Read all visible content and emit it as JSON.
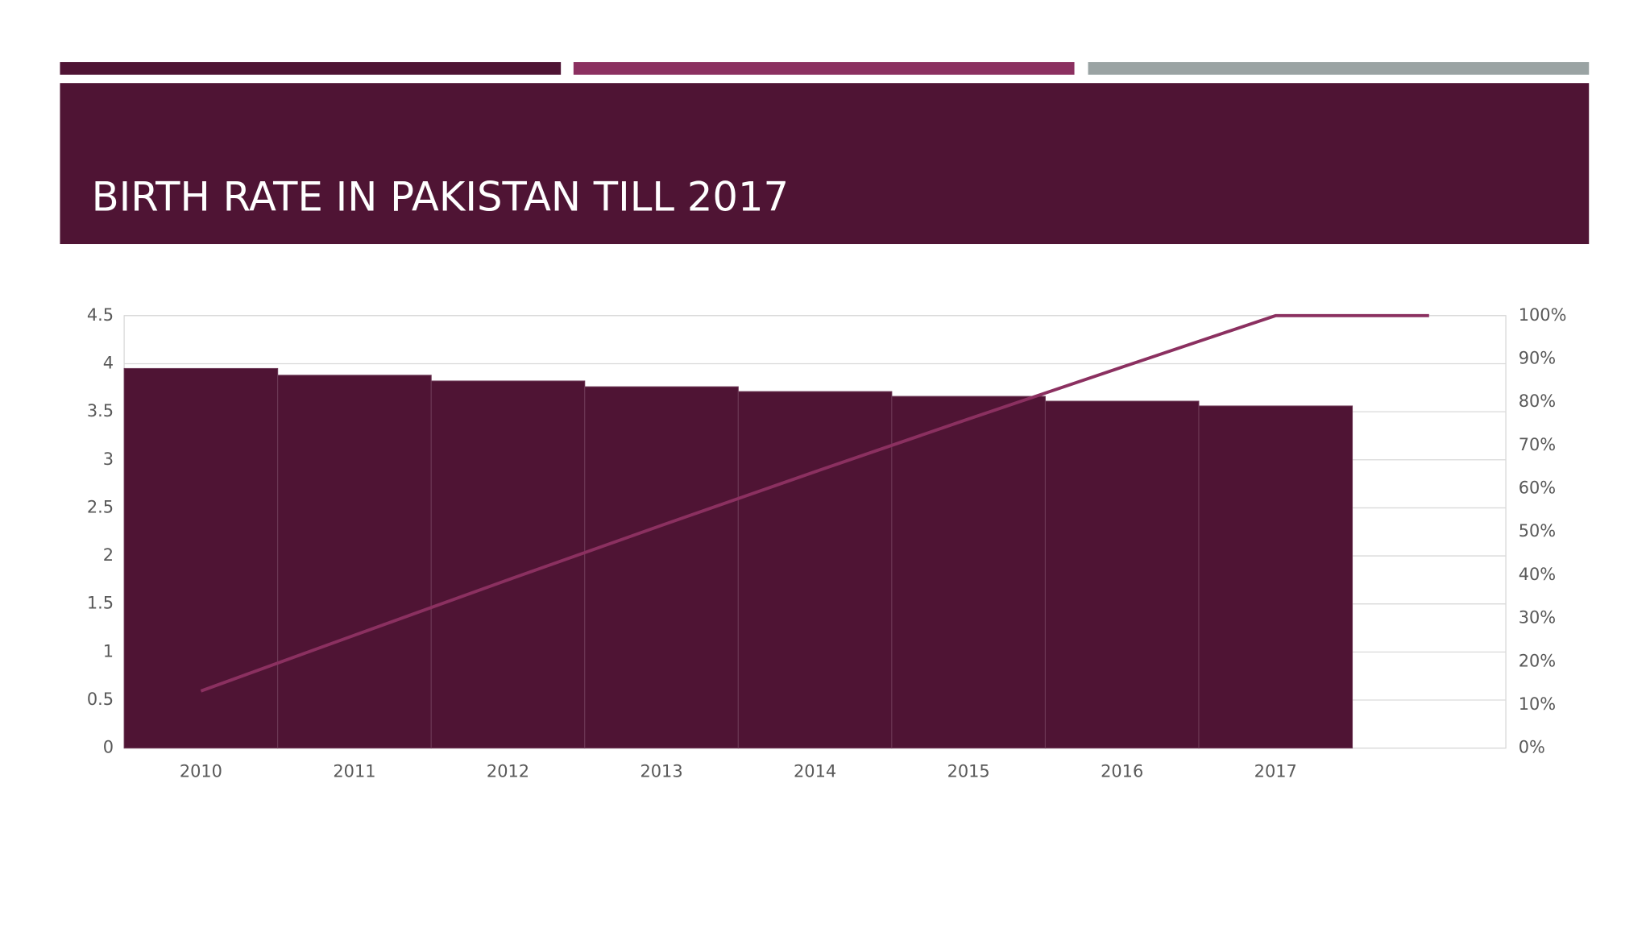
{
  "chart_data": {
    "type": "bar",
    "title": "BIRTH RATE IN PAKISTAN TILL 2017",
    "categories": [
      "2010",
      "2011",
      "2012",
      "2013",
      "2014",
      "2015",
      "2016",
      "2017",
      null
    ],
    "series": [
      {
        "type": "bar",
        "color": "#4f1434",
        "values": [
          3.95,
          3.88,
          3.82,
          3.76,
          3.71,
          3.66,
          3.61,
          3.56,
          null
        ]
      },
      {
        "type": "line",
        "color": "#8b3060",
        "axis": "y2",
        "values": [
          13.2,
          26.1,
          38.9,
          51.5,
          63.9,
          76.1,
          88.1,
          100,
          100
        ]
      }
    ],
    "ylim": [
      0,
      4.5
    ],
    "yticks": [
      0,
      0.5,
      1,
      1.5,
      2,
      2.5,
      3,
      3.5,
      4,
      4.5
    ],
    "y2lim": [
      0,
      100
    ],
    "y2ticks": [
      {
        "value": 0,
        "label": "0%"
      },
      {
        "value": 10,
        "label": "10%"
      },
      {
        "value": 20,
        "label": "20%"
      },
      {
        "value": 30,
        "label": "30%"
      },
      {
        "value": 40,
        "label": "40%"
      },
      {
        "value": 50,
        "label": "50%"
      },
      {
        "value": 60,
        "label": "60%"
      },
      {
        "value": 70,
        "label": "70%"
      },
      {
        "value": 80,
        "label": "80%"
      },
      {
        "value": 90,
        "label": "90%"
      },
      {
        "value": 100,
        "label": "100%"
      }
    ],
    "grid": true
  }
}
